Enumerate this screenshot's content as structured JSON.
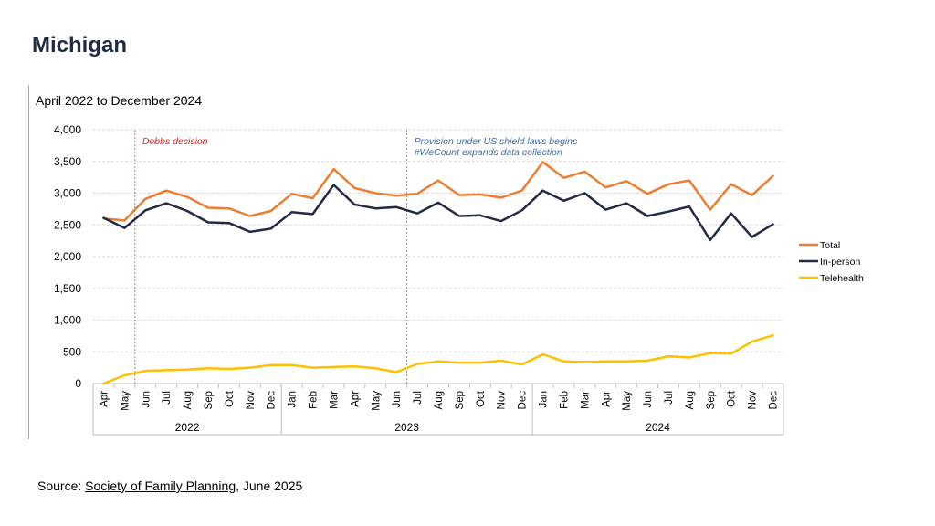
{
  "page": {
    "title": "Michigan",
    "source_prefix": "Source: ",
    "source_link": "Society of Family Planning",
    "source_suffix": ", June 2025"
  },
  "chart_data": {
    "type": "line",
    "title": "April 2022 to December 2024",
    "months": [
      "Apr",
      "May",
      "Jun",
      "Jul",
      "Aug",
      "Sep",
      "Oct",
      "Nov",
      "Dec",
      "Jan",
      "Feb",
      "Mar",
      "Apr",
      "May",
      "Jun",
      "Jul",
      "Aug",
      "Sep",
      "Oct",
      "Nov",
      "Dec",
      "Jan",
      "Feb",
      "Mar",
      "Apr",
      "May",
      "Jun",
      "Jul",
      "Aug",
      "Sep",
      "Oct",
      "Nov",
      "Dec"
    ],
    "years": [
      {
        "label": "2022",
        "start": 0,
        "end": 8
      },
      {
        "label": "2023",
        "start": 9,
        "end": 20
      },
      {
        "label": "2024",
        "start": 21,
        "end": 32
      }
    ],
    "ylim": [
      0,
      4000
    ],
    "yticks": [
      0,
      500,
      1000,
      1500,
      2000,
      2500,
      3000,
      3500,
      4000
    ],
    "ytick_labels": [
      "0",
      "500",
      "1,000",
      "1,500",
      "2,000",
      "2,500",
      "3,000",
      "3,500",
      "4,000"
    ],
    "grid": true,
    "legend_position": "right",
    "series": [
      {
        "name": "Total",
        "color": "#ed7d31",
        "values": [
          2600,
          2570,
          2910,
          3040,
          2940,
          2770,
          2760,
          2640,
          2720,
          2990,
          2920,
          3380,
          3080,
          3000,
          2960,
          2990,
          3200,
          2970,
          2980,
          2930,
          3040,
          3490,
          3240,
          3340,
          3090,
          3190,
          2990,
          3140,
          3200,
          2740,
          3140,
          2970,
          3270
        ]
      },
      {
        "name": "In-person",
        "color": "#222a44",
        "values": [
          2610,
          2450,
          2730,
          2840,
          2720,
          2540,
          2530,
          2390,
          2440,
          2700,
          2670,
          3130,
          2820,
          2760,
          2780,
          2680,
          2850,
          2640,
          2650,
          2560,
          2730,
          3040,
          2880,
          3000,
          2740,
          2840,
          2640,
          2710,
          2790,
          2260,
          2680,
          2310,
          2510
        ]
      },
      {
        "name": "Telehealth",
        "color": "#ffc000",
        "values": [
          0,
          130,
          200,
          210,
          220,
          240,
          230,
          250,
          290,
          290,
          250,
          260,
          270,
          240,
          180,
          310,
          350,
          330,
          330,
          360,
          300,
          460,
          350,
          340,
          350,
          350,
          360,
          430,
          410,
          480,
          470,
          660,
          760
        ]
      }
    ],
    "annotations": [
      {
        "text": "Dobbs decision",
        "after_index": 1,
        "color": "#e02020"
      },
      {
        "text": "Provision under US shield laws begins",
        "text2": "#WeCount expands data collection",
        "after_index": 14,
        "color": "#3b6aa8"
      }
    ]
  }
}
